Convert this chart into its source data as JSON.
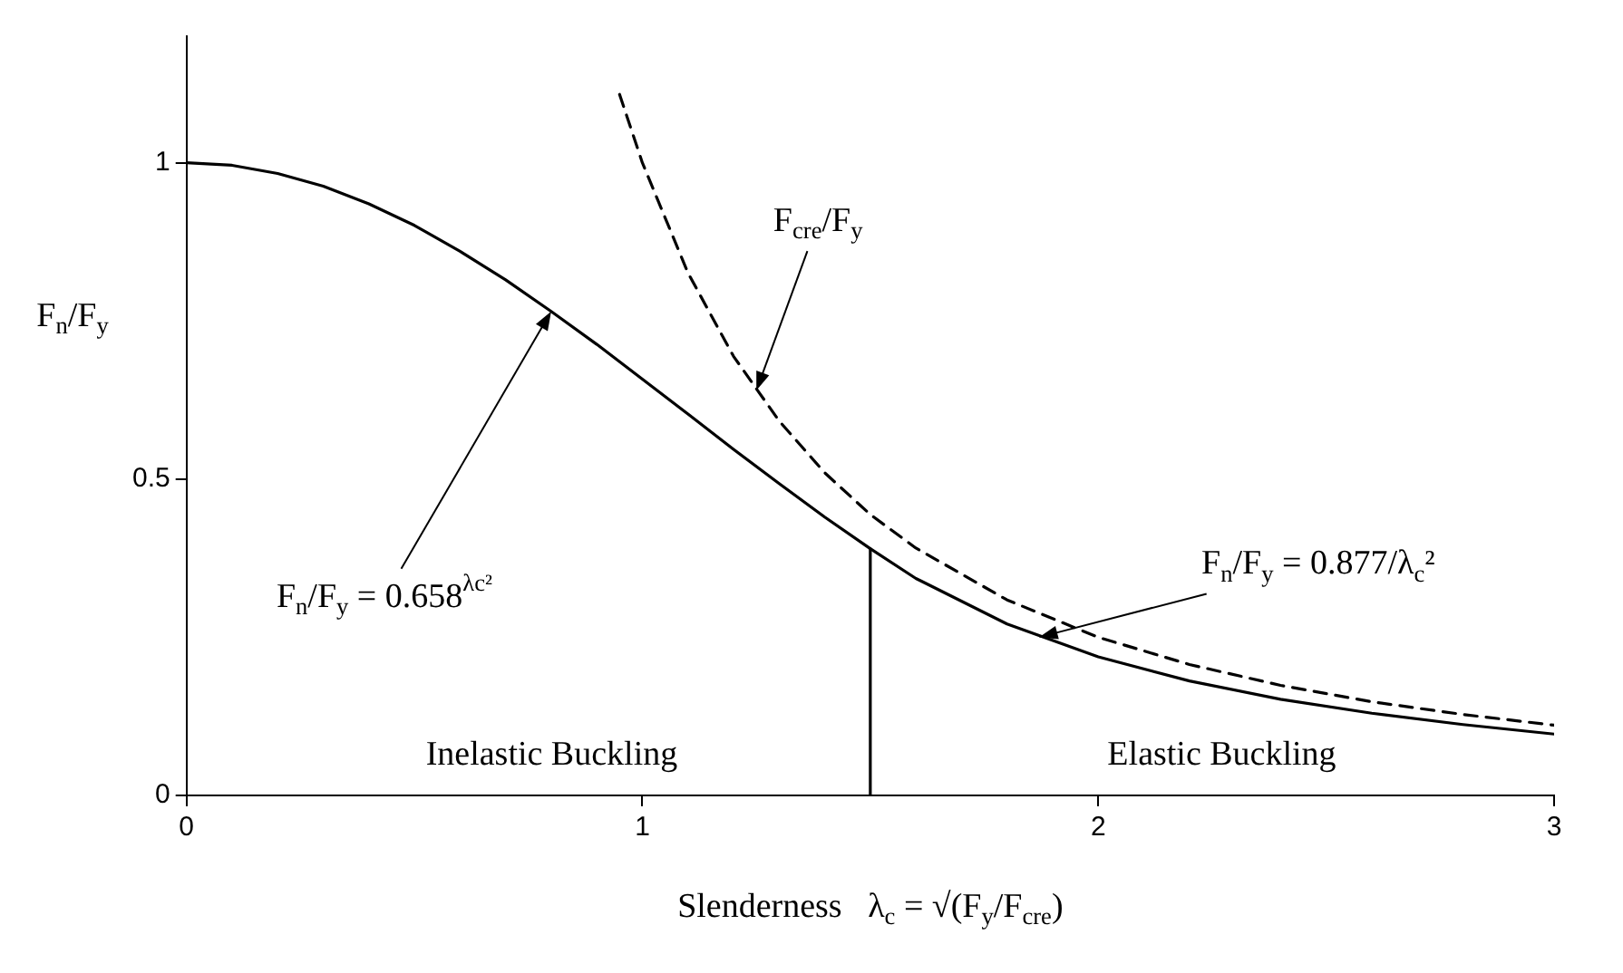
{
  "chart_data": {
    "type": "line",
    "xlabel": "Slenderness   λ$_{c}$ = √(F$_{y}$/F$_{cre}$)",
    "ylabel": "F$_{n}$/F$_{y}$",
    "xlim": [
      0,
      3
    ],
    "ylim": [
      0,
      1.2
    ],
    "xticks": [
      0,
      1,
      2,
      3
    ],
    "yticks": [
      0,
      0.5,
      1
    ],
    "grid": false,
    "legend": false,
    "marker": "none",
    "series": [
      {
        "type": "line",
        "color": "#000000",
        "line_style": "solid",
        "x": [
          0,
          0.1,
          0.2,
          0.3,
          0.4,
          0.5,
          0.6,
          0.7,
          0.8,
          0.9,
          1.0,
          1.1,
          1.2,
          1.3,
          1.4,
          1.5,
          1.6,
          1.8,
          2.0,
          2.2,
          2.4,
          2.6,
          2.8,
          3.0
        ],
        "values": [
          1,
          0.996,
          0.983,
          0.963,
          0.935,
          0.901,
          0.86,
          0.815,
          0.765,
          0.713,
          0.658,
          0.603,
          0.547,
          0.493,
          0.44,
          0.39,
          0.343,
          0.271,
          0.219,
          0.181,
          0.152,
          0.13,
          0.112,
          0.097
        ]
      },
      {
        "type": "line",
        "color": "#000000",
        "line_style": "dashed",
        "x": [
          0.95,
          1.0,
          1.1,
          1.2,
          1.3,
          1.4,
          1.5,
          1.6,
          1.8,
          2.0,
          2.2,
          2.4,
          2.6,
          2.8,
          3.0
        ],
        "values": [
          1.108,
          1.0,
          0.826,
          0.694,
          0.592,
          0.51,
          0.444,
          0.391,
          0.309,
          0.25,
          0.207,
          0.174,
          0.148,
          0.128,
          0.111
        ]
      },
      {
        "type": "line",
        "color": "#000000",
        "line_style": "solid",
        "x": [
          1.5,
          1.5
        ],
        "values": [
          0,
          0.39
        ]
      }
    ],
    "annotations": [
      {
        "text": "F$_{n}$/F$_{y}$ = 0.658$^{λc²}$",
        "x": 0.8,
        "y": 0.765
      },
      {
        "text": "F$_{cre}$/F$_{y}$",
        "x": 1.25,
        "y": 0.64
      },
      {
        "text": "F$_{n}$/F$_{y}$ = 0.877/λ$_{c}$²",
        "x": 1.87,
        "y": 0.25
      },
      "Inelastic Buckling",
      "Elastic Buckling"
    ]
  }
}
